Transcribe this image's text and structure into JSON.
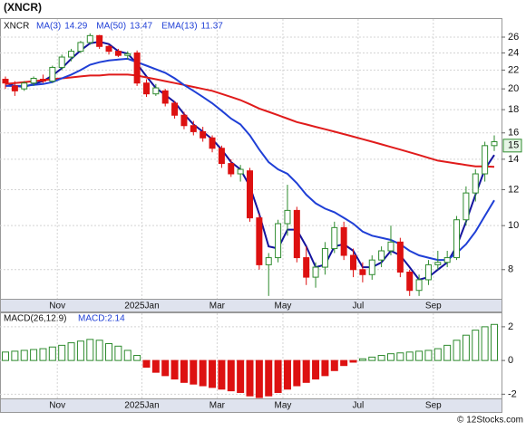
{
  "chart_data": [
    {
      "type": "candlestick",
      "title": "(XNCR)",
      "symbol": "XNCR",
      "log": true,
      "grid": true,
      "up_color": "#2e8b2e",
      "down_color": "#dd1111",
      "categories": [
        null,
        null,
        null,
        null,
        null,
        null,
        "Nov",
        null,
        null,
        null,
        null,
        null,
        null,
        null,
        null,
        "2025Jan",
        null,
        null,
        null,
        null,
        null,
        null,
        null,
        "Mar",
        null,
        null,
        null,
        null,
        null,
        null,
        "May",
        null,
        null,
        null,
        null,
        null,
        null,
        null,
        "Jul",
        null,
        null,
        null,
        null,
        null,
        null,
        null,
        "Sep",
        null,
        null,
        null,
        null,
        null,
        null
      ],
      "open": [
        21,
        20.3,
        20,
        20.6,
        21,
        20.8,
        22.3,
        23.5,
        24.2,
        25.3,
        26.2,
        24.8,
        24.2,
        23.7,
        24,
        20.6,
        19.5,
        19.8,
        18.6,
        17.5,
        16.6,
        16.1,
        15.6,
        14.8,
        13.7,
        13,
        13.2,
        10.4,
        8.2,
        8.5,
        10.1,
        10.8,
        8.5,
        7.7,
        8.1,
        8.9,
        9.9,
        8.6,
        8,
        7.8,
        8.4,
        8.8,
        9.2,
        7.9,
        7.2,
        7.6,
        8.2,
        8.3,
        8.5,
        10.3,
        11.8,
        13,
        15
      ],
      "high": [
        21.3,
        20.8,
        20.8,
        21.3,
        21.5,
        22.5,
        23.8,
        24.5,
        25.5,
        26.5,
        26.3,
        25,
        24.5,
        24.2,
        24.3,
        21,
        20.5,
        20,
        18.8,
        17.8,
        17,
        16.5,
        15.8,
        15,
        14,
        13.6,
        13.4,
        10.6,
        8.7,
        10.3,
        12.3,
        11,
        9,
        8.3,
        9.2,
        10.2,
        10.2,
        8.9,
        8.3,
        8.6,
        9,
        10,
        9.4,
        8,
        7.8,
        8.4,
        8.8,
        8.8,
        10.5,
        12.2,
        13.3,
        15.3,
        15.8
      ],
      "low": [
        20,
        19.3,
        19.8,
        20.3,
        20.6,
        20.6,
        22,
        23,
        24,
        25,
        24.5,
        23.8,
        23.5,
        23.2,
        20.3,
        19.2,
        19.3,
        18.3,
        17.2,
        16.3,
        15.8,
        15.3,
        14.5,
        13.4,
        12.8,
        12.5,
        10.2,
        8,
        7,
        8.3,
        9.5,
        8.3,
        7.4,
        7.3,
        7.8,
        8.7,
        8.4,
        7.7,
        7.5,
        7.6,
        8.1,
        8.6,
        7.7,
        7,
        7,
        7.4,
        8,
        8.1,
        8.4,
        10,
        11.3,
        12.5,
        14.6
      ],
      "close": [
        20.6,
        19.8,
        20.6,
        21.1,
        20.8,
        22.3,
        23.5,
        24.2,
        25.3,
        26.2,
        24.8,
        24.2,
        23.7,
        23.9,
        20.6,
        19.5,
        20.1,
        18.6,
        17.5,
        16.6,
        16.1,
        15.6,
        14.8,
        13.7,
        13,
        13.3,
        10.4,
        8.2,
        8.5,
        10.1,
        10.8,
        8.5,
        7.7,
        8.1,
        8.9,
        9.9,
        8.6,
        8,
        7.8,
        8.4,
        8.8,
        9.2,
        7.9,
        7.2,
        7.6,
        8.2,
        8.3,
        8.5,
        10.3,
        11.8,
        13,
        15,
        15.3
      ],
      "series": [
        {
          "name": "MA(3)",
          "last": 14.29,
          "color": "#14149e",
          "values": [
            20.6,
            20.3,
            20.2,
            20.5,
            20.8,
            21.4,
            22.2,
            23.3,
            24.3,
            25.2,
            25.4,
            25.1,
            24.2,
            23.9,
            22.7,
            21.3,
            20.1,
            19.4,
            18.7,
            17.6,
            16.7,
            16.1,
            15.5,
            14.7,
            13.8,
            13.3,
            12.2,
            10.6,
            9,
            8.9,
            9.8,
            9.8,
            9,
            8.1,
            8.2,
            9,
            9.1,
            8.8,
            8.1,
            8.1,
            8.3,
            8.8,
            8.6,
            8.1,
            7.6,
            7.7,
            8,
            8.3,
            9,
            10.2,
            11.7,
            13.3,
            14.3
          ]
        },
        {
          "name": "MA(50)",
          "last": 13.47,
          "color": "#e01b1b",
          "values": [
            20.5,
            20.6,
            20.7,
            20.8,
            20.9,
            21,
            21.1,
            21.2,
            21.3,
            21.4,
            21.4,
            21.5,
            21.5,
            21.5,
            21.4,
            21.2,
            21,
            20.8,
            20.6,
            20.4,
            20.2,
            20,
            19.8,
            19.5,
            19.2,
            18.9,
            18.5,
            18.1,
            17.8,
            17.5,
            17.2,
            16.9,
            16.7,
            16.5,
            16.3,
            16.1,
            15.9,
            15.7,
            15.5,
            15.3,
            15.1,
            14.9,
            14.7,
            14.5,
            14.3,
            14.1,
            13.9,
            13.8,
            13.7,
            13.6,
            13.5,
            13.5,
            13.47
          ]
        },
        {
          "name": "EMA(13)",
          "last": 11.37,
          "color": "#1f3fd6",
          "values": [
            20.3,
            20.3,
            20.3,
            20.4,
            20.5,
            20.7,
            21.1,
            21.5,
            22,
            22.6,
            22.9,
            23.1,
            23.2,
            23.3,
            22.9,
            22.5,
            22.1,
            21.7,
            21.1,
            20.4,
            19.8,
            19.2,
            18.6,
            17.9,
            17.2,
            16.7,
            15.8,
            14.7,
            13.8,
            13.3,
            13,
            12.4,
            11.7,
            11.2,
            10.9,
            10.7,
            10.4,
            10.1,
            9.7,
            9.5,
            9.4,
            9.3,
            9.1,
            8.8,
            8.6,
            8.5,
            8.4,
            8.4,
            8.7,
            9.1,
            9.7,
            10.5,
            11.37
          ]
        }
      ],
      "last_price": 15,
      "ylim": [
        6.9,
        28.5
      ],
      "yticks": [
        8,
        10,
        12,
        14,
        16,
        18,
        20,
        22,
        24,
        26
      ]
    },
    {
      "type": "bar",
      "title": "MACD(26,12,9)",
      "legend": "MACD:2.14",
      "up_color": "#2e8b2e",
      "down_color": "#dd1111",
      "categories": [
        null,
        null,
        null,
        null,
        null,
        null,
        "Nov",
        null,
        null,
        null,
        null,
        null,
        null,
        null,
        null,
        "2025Jan",
        null,
        null,
        null,
        null,
        null,
        null,
        null,
        "Mar",
        null,
        null,
        null,
        null,
        null,
        null,
        "May",
        null,
        null,
        null,
        null,
        null,
        null,
        null,
        "Jul",
        null,
        null,
        null,
        null,
        null,
        null,
        null,
        "Sep",
        null,
        null,
        null,
        null,
        null,
        null
      ],
      "values": [
        0.5,
        0.55,
        0.6,
        0.65,
        0.7,
        0.8,
        0.9,
        1.05,
        1.15,
        1.25,
        1.2,
        1.0,
        0.85,
        0.6,
        0.3,
        -0.4,
        -0.7,
        -0.9,
        -1.1,
        -1.3,
        -1.4,
        -1.5,
        -1.6,
        -1.7,
        -1.8,
        -1.9,
        -2.1,
        -2.2,
        -2.1,
        -1.9,
        -1.7,
        -1.5,
        -1.3,
        -1.1,
        -0.9,
        -0.6,
        -0.3,
        -0.1,
        0.1,
        0.2,
        0.3,
        0.4,
        0.45,
        0.5,
        0.55,
        0.6,
        0.7,
        0.9,
        1.2,
        1.5,
        1.8,
        2.0,
        2.14
      ],
      "ylim": [
        -2.25,
        2.8
      ],
      "yticks": [
        -2,
        0,
        2
      ],
      "grid": true
    }
  ],
  "footer": "© 12Stocks.com"
}
